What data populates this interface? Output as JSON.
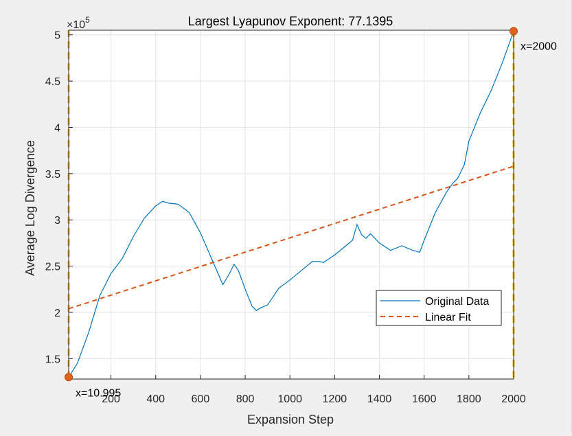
{
  "chart_data": {
    "type": "line",
    "title": "Largest Lyapunov Exponent: 77.1395",
    "xlabel": "Expansion Step",
    "ylabel": "Average Log Divergence",
    "y_exponent_label": "×10",
    "y_exponent_power": "5",
    "xlim": [
      10.995,
      2000
    ],
    "ylim": [
      128000,
      505000
    ],
    "y_scale_factor": 100000,
    "x_ticks": [
      200,
      400,
      600,
      800,
      1000,
      1200,
      1400,
      1600,
      1800,
      2000
    ],
    "y_ticks": [
      150000,
      200000,
      250000,
      300000,
      350000,
      400000,
      450000,
      500000
    ],
    "grid": true,
    "legend_position": "lower-right",
    "series": [
      {
        "name": "Original Data",
        "color": "#0072BD",
        "style": "solid",
        "x": [
          11,
          50,
          100,
          150,
          200,
          250,
          300,
          350,
          400,
          430,
          460,
          500,
          550,
          600,
          650,
          700,
          730,
          750,
          770,
          800,
          830,
          850,
          870,
          900,
          950,
          1000,
          1050,
          1100,
          1130,
          1150,
          1200,
          1250,
          1280,
          1300,
          1320,
          1340,
          1360,
          1400,
          1450,
          1500,
          1550,
          1580,
          1600,
          1650,
          1700,
          1730,
          1750,
          1780,
          1800,
          1850,
          1900,
          1950,
          2000
        ],
        "y": [
          130000,
          145000,
          178000,
          218000,
          242000,
          258000,
          282000,
          302000,
          315000,
          320000,
          318000,
          317000,
          308000,
          286000,
          258000,
          230000,
          242000,
          252000,
          245000,
          225000,
          207000,
          202000,
          205000,
          208000,
          226000,
          235000,
          245000,
          255000,
          255000,
          254000,
          262000,
          272000,
          278000,
          295000,
          284000,
          280000,
          285000,
          275000,
          267000,
          272000,
          267000,
          265000,
          278000,
          308000,
          330000,
          340000,
          345000,
          360000,
          385000,
          415000,
          440000,
          470000,
          504000
        ]
      },
      {
        "name": "Linear Fit",
        "color": "#D95319",
        "style": "dashed",
        "x": [
          11,
          2000
        ],
        "y": [
          204000,
          358000
        ]
      }
    ],
    "annotations": [
      {
        "label": "x=10.995",
        "x": 10.995,
        "y": 130000
      },
      {
        "label": "x=2000",
        "x": 2000,
        "y": 504000
      }
    ],
    "marker_color": "#E2621B",
    "vline_color": "#EDB120"
  }
}
